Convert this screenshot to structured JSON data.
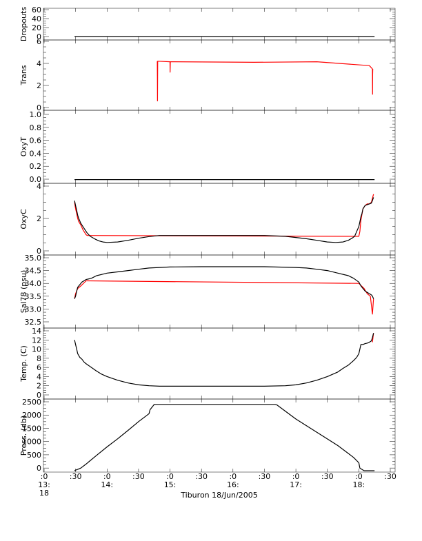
{
  "chart_data": {
    "type": "line",
    "caption": "Tiburon 18/Jun/2005",
    "colors": {
      "primary": "#000000",
      "secondary": "#ff0000"
    },
    "x_axis": {
      "range_minutes": [
        0,
        330
      ],
      "ticks": [
        {
          "minute": 0,
          "line1": ":0",
          "line2": "13:",
          "line3": "18"
        },
        {
          "minute": 30,
          "line1": ":30",
          "line2": "",
          "line3": ""
        },
        {
          "minute": 60,
          "line1": ":0",
          "line2": "14:",
          "line3": ""
        },
        {
          "minute": 90,
          "line1": ":30",
          "line2": "",
          "line3": ""
        },
        {
          "minute": 120,
          "line1": ":0",
          "line2": "15:",
          "line3": ""
        },
        {
          "minute": 150,
          "line1": ":30",
          "line2": "",
          "line3": ""
        },
        {
          "minute": 180,
          "line1": ":0",
          "line2": "16:",
          "line3": ""
        },
        {
          "minute": 210,
          "line1": ":30",
          "line2": "",
          "line3": ""
        },
        {
          "minute": 240,
          "line1": ":0",
          "line2": "17:",
          "line3": ""
        },
        {
          "minute": 270,
          "line1": ":30",
          "line2": "",
          "line3": ""
        },
        {
          "minute": 300,
          "line1": ":0",
          "line2": "18:",
          "line3": ""
        },
        {
          "minute": 330,
          "line1": ":30",
          "line2": "",
          "line3": ""
        }
      ]
    },
    "panels": [
      {
        "ylabel": "Dropouts",
        "ylim": [
          0,
          60
        ],
        "yticks": [
          {
            "v": 0,
            "t": "0"
          },
          {
            "v": 20,
            "t": "20"
          },
          {
            "v": 40,
            "t": "40"
          },
          {
            "v": 60,
            "t": "60"
          }
        ],
        "series": [
          {
            "color": "#000000",
            "x": [
              29,
              315
            ],
            "y": [
              0,
              0
            ]
          }
        ]
      },
      {
        "ylabel": "Trans",
        "ylim": [
          0,
          6
        ],
        "yticks": [
          {
            "v": 0,
            "t": "0"
          },
          {
            "v": 2,
            "t": "2"
          },
          {
            "v": 4,
            "t": "4"
          },
          {
            "v": 6,
            "t": "6"
          }
        ],
        "series": [
          {
            "color": "#ff0000",
            "x": [
              107.9,
              108.0,
              108.1,
              108.3,
              120.0,
              120.1,
              120.3,
              200.0,
              260.0,
              310.0,
              313.0,
              313.1,
              313.2,
              313.3
            ],
            "y": [
              4.2,
              2.5,
              0.6,
              4.2,
              4.15,
              3.2,
              4.15,
              4.1,
              4.15,
              3.8,
              3.5,
              1.2,
              3.0,
              3.5
            ]
          }
        ]
      },
      {
        "ylabel": "OxyT",
        "ylim": [
          0,
          1
        ],
        "yticks": [
          {
            "v": 0,
            "t": "0.0"
          },
          {
            "v": 0.2,
            "t": "0.2"
          },
          {
            "v": 0.4,
            "t": "0.4"
          },
          {
            "v": 0.6,
            "t": "0.6"
          },
          {
            "v": 0.8,
            "t": "0.8"
          },
          {
            "v": 1.0,
            "t": "1.0"
          }
        ],
        "series": []
      },
      {
        "ylabel": "OxyC",
        "ylim": [
          0,
          4
        ],
        "yticks": [
          {
            "v": 0,
            "t": "0"
          },
          {
            "v": 2,
            "t": "2"
          },
          {
            "v": 4,
            "t": "4"
          }
        ],
        "series": [
          {
            "color": "#000000",
            "x": [
              29,
              315
            ],
            "y": [
              4.4,
              4.4
            ]
          },
          {
            "color": "#ff0000",
            "x": [
              29,
              30,
              31,
              32,
              33,
              35,
              37,
              39,
              40,
              41,
              300,
              301,
              302,
              304,
              306,
              308,
              310,
              312,
              314
            ],
            "y": [
              3.0,
              2.6,
              2.3,
              2.0,
              1.8,
              1.6,
              1.3,
              1.1,
              1.0,
              0.95,
              0.9,
              1.2,
              1.9,
              2.6,
              2.8,
              2.9,
              2.9,
              3.0,
              3.5
            ]
          },
          {
            "color": "#000000",
            "x": [
              29,
              30,
              31,
              32,
              33,
              35,
              37,
              39,
              41,
              44,
              48,
              52,
              56,
              60,
              70,
              80,
              90,
              100,
              110,
              130,
              150,
              170,
              190,
              210,
              230,
              250,
              260,
              270,
              278,
              285,
              290,
              294,
              296,
              298,
              300,
              301,
              302,
              303,
              304,
              306,
              308,
              310,
              312,
              313,
              314
            ],
            "y": [
              3.1,
              2.8,
              2.5,
              2.2,
              2.0,
              1.7,
              1.5,
              1.3,
              1.1,
              0.9,
              0.75,
              0.62,
              0.55,
              0.52,
              0.55,
              0.65,
              0.78,
              0.88,
              0.95,
              0.95,
              0.95,
              0.95,
              0.95,
              0.95,
              0.9,
              0.75,
              0.65,
              0.55,
              0.52,
              0.55,
              0.65,
              0.8,
              0.9,
              1.2,
              1.5,
              1.8,
              2.1,
              2.3,
              2.6,
              2.8,
              2.85,
              2.9,
              2.95,
              3.1,
              3.3
            ]
          }
        ]
      },
      {
        "ylabel": "Sal78 (psu)",
        "ylim": [
          32.5,
          35.0
        ],
        "yticks": [
          {
            "v": 32.5,
            "t": "32.5"
          },
          {
            "v": 33.0,
            "t": "33.0"
          },
          {
            "v": 33.5,
            "t": "33.5"
          },
          {
            "v": 34.0,
            "t": "34.0"
          },
          {
            "v": 34.5,
            "t": "34.5"
          },
          {
            "v": 35.0,
            "t": "35.0"
          }
        ],
        "series": [
          {
            "color": "#ff0000",
            "x": [
              29,
              30,
              32,
              35,
              40,
              300,
              305,
              308,
              311,
              313,
              314
            ],
            "y": [
              33.4,
              33.6,
              33.8,
              33.9,
              34.1,
              34.0,
              33.8,
              33.6,
              33.5,
              32.8,
              33.4
            ]
          },
          {
            "color": "#000000",
            "x": [
              29,
              30,
              31,
              32,
              34,
              36,
              38,
              40,
              45,
              50,
              55,
              60,
              70,
              80,
              90,
              100,
              110,
              120,
              150,
              180,
              210,
              240,
              250,
              260,
              270,
              280,
              290,
              295,
              300,
              302,
              304,
              306,
              308,
              310,
              312,
              313,
              314
            ],
            "y": [
              33.4,
              33.5,
              33.7,
              33.85,
              33.95,
              34.05,
              34.1,
              34.15,
              34.2,
              34.3,
              34.35,
              34.4,
              34.45,
              34.5,
              34.55,
              34.6,
              34.62,
              34.64,
              34.65,
              34.65,
              34.65,
              34.62,
              34.6,
              34.55,
              34.5,
              34.4,
              34.3,
              34.2,
              34.05,
              33.9,
              33.8,
              33.7,
              33.65,
              33.6,
              33.55,
              33.5,
              33.4
            ]
          }
        ]
      },
      {
        "ylabel": "Temp. (C)",
        "ylim": [
          0,
          14
        ],
        "yticks": [
          {
            "v": 0,
            "t": "0"
          },
          {
            "v": 2,
            "t": "2"
          },
          {
            "v": 4,
            "t": "4"
          },
          {
            "v": 6,
            "t": "6"
          },
          {
            "v": 8,
            "t": "8"
          },
          {
            "v": 10,
            "t": "10"
          },
          {
            "v": 12,
            "t": "12"
          },
          {
            "v": 14,
            "t": "14"
          }
        ],
        "series": [
          {
            "color": "#ff0000",
            "x": [
              313,
              314
            ],
            "y": [
              11.5,
              13.5
            ]
          },
          {
            "color": "#000000",
            "x": [
              29,
              30,
              31,
              32,
              34,
              36,
              38,
              40,
              45,
              50,
              55,
              60,
              70,
              80,
              90,
              100,
              110,
              120,
              150,
              180,
              210,
              230,
              240,
              250,
              260,
              270,
              280,
              285,
              290,
              295,
              298,
              300,
              302,
              304,
              306,
              308,
              310,
              312,
              313,
              314
            ],
            "y": [
              12.0,
              11.0,
              10.0,
              9.0,
              8.2,
              7.8,
              7.2,
              6.8,
              6.0,
              5.2,
              4.5,
              4.0,
              3.2,
              2.6,
              2.2,
              2.0,
              1.9,
              1.9,
              1.9,
              1.9,
              1.9,
              2.0,
              2.2,
              2.6,
              3.2,
              4.0,
              5.0,
              5.8,
              6.5,
              7.5,
              8.2,
              9.0,
              11.0,
              11.0,
              11.2,
              11.3,
              11.5,
              11.8,
              12.5,
              13.5
            ]
          }
        ]
      },
      {
        "ylabel": "Press. (db)",
        "ylim": [
          -100,
          2500
        ],
        "yticks": [
          {
            "v": 0,
            "t": "0"
          },
          {
            "v": 500,
            "t": "500"
          },
          {
            "v": 1000,
            "t": "1000"
          },
          {
            "v": 1500,
            "t": "1500"
          },
          {
            "v": 2000,
            "t": "2000"
          },
          {
            "v": 2500,
            "t": "2500"
          }
        ],
        "series": [
          {
            "color": "#000000",
            "x": [
              29,
              30,
              32,
              35,
              40,
              50,
              60,
              70,
              80,
              90,
              100,
              101,
              105,
              180,
              220,
              222,
              240,
              260,
              280,
              295,
              300,
              301,
              305,
              313,
              315
            ],
            "y": [
              -100,
              -80,
              -50,
              0,
              150,
              480,
              800,
              1100,
              1420,
              1750,
              2050,
              2200,
              2400,
              2400,
              2400,
              2380,
              1850,
              1350,
              850,
              400,
              200,
              0,
              -100,
              -100,
              -100
            ]
          }
        ]
      }
    ]
  }
}
